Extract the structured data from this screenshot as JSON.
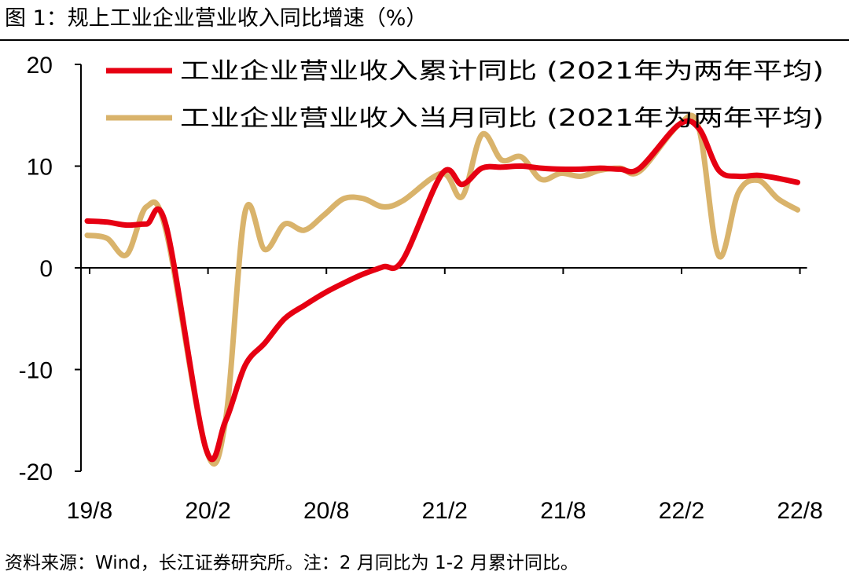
{
  "figure": {
    "title": "图 1：规上工业企业营业收入同比增速（%）",
    "footer": "资料来源：Wind，长江证券研究所。注：2 月同比为 1-2 月累计同比。"
  },
  "chart_data": {
    "type": "line",
    "title": "",
    "xlabel": "",
    "ylabel": "",
    "ylim": [
      -20,
      20
    ],
    "yticks": [
      "20",
      "10",
      "0",
      "-10",
      "-20"
    ],
    "xtick_labels": [
      "19/8",
      "20/2",
      "20/8",
      "21/2",
      "21/8",
      "22/2",
      "22/8"
    ],
    "grid": false,
    "legend_position": "top",
    "x": [
      "19/8",
      "19/9",
      "19/10",
      "19/11",
      "19/12",
      "20/1",
      "20/2",
      "20/3",
      "20/4",
      "20/5",
      "20/6",
      "20/7",
      "20/8",
      "20/9",
      "20/10",
      "20/11",
      "20/12",
      "21/1",
      "21/2",
      "21/3",
      "21/4",
      "21/5",
      "21/6",
      "21/7",
      "21/8",
      "21/9",
      "21/10",
      "21/11",
      "21/12",
      "22/1",
      "22/2",
      "22/3",
      "22/4",
      "22/5",
      "22/6",
      "22/7",
      "22/8"
    ],
    "series": [
      {
        "name": "工业企业营业收入累计同比 (2021年为两年平均)",
        "color": "#e60012",
        "values": [
          4.6,
          4.5,
          4.2,
          4.3,
          4.1,
          null,
          -17.7,
          -15.1,
          -9.6,
          -7.4,
          -5.0,
          -3.7,
          -2.5,
          -1.5,
          -0.6,
          0.1,
          0.8,
          null,
          9.3,
          8.2,
          9.8,
          9.9,
          10.0,
          9.8,
          9.7,
          9.7,
          9.8,
          9.7,
          9.8,
          null,
          14.1,
          13.7,
          9.6,
          9.0,
          9.1,
          8.8,
          8.4
        ]
      },
      {
        "name": "工业企业营业收入当月同比 (2021年为两年平均)",
        "color": "#d9b36b",
        "values": [
          3.2,
          2.9,
          1.3,
          6.0,
          3.6,
          null,
          -17.7,
          -15.1,
          5.5,
          1.8,
          4.3,
          3.7,
          5.2,
          6.8,
          6.8,
          6.0,
          6.6,
          null,
          9.3,
          7.0,
          13.1,
          10.6,
          10.9,
          8.7,
          9.3,
          9.0,
          9.6,
          9.8,
          9.5,
          null,
          14.1,
          13.7,
          1.2,
          7.4,
          8.6,
          6.8,
          5.7
        ]
      }
    ]
  }
}
